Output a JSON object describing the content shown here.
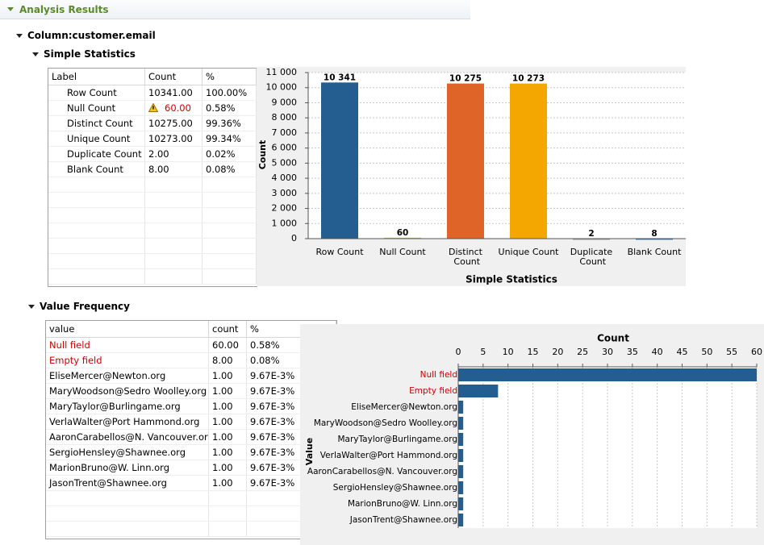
{
  "header": {
    "title": "Analysis Results"
  },
  "column": "Column:customer.email",
  "statistics": {
    "title": "Simple Statistics",
    "table": {
      "columns": [
        "Label",
        "Count",
        "%"
      ],
      "rows": [
        [
          "Row Count",
          "10341.00",
          "100.00%"
        ],
        [
          "Null Count",
          "60.00",
          "0.58%"
        ],
        [
          "Distinct Count",
          "10275.00",
          "99.36%"
        ],
        [
          "Unique Count",
          "10273.00",
          "99.34%"
        ],
        [
          "Duplicate Count",
          "2.00",
          "0.02%"
        ],
        [
          "Blank Count",
          "8.00",
          "0.08%"
        ]
      ]
    }
  },
  "frequency": {
    "title": "Value Frequency",
    "table": {
      "columns": [
        "value",
        "count",
        "%"
      ],
      "rows": [
        [
          "Null field",
          "60.00",
          "0.58%"
        ],
        [
          "Empty field",
          "8.00",
          "0.08%"
        ],
        [
          "EliseMercer@Newton.org",
          "1.00",
          "9.67E-3%"
        ],
        [
          "MaryWoodson@Sedro Woolley.org",
          "1.00",
          "9.67E-3%"
        ],
        [
          "MaryTaylor@Burlingame.org",
          "1.00",
          "9.67E-3%"
        ],
        [
          "VerlaWalter@Port Hammond.org",
          "1.00",
          "9.67E-3%"
        ],
        [
          "AaronCarabellos@N. Vancouver.org",
          "1.00",
          "9.67E-3%"
        ],
        [
          "SergioHensley@Shawnee.org",
          "1.00",
          "9.67E-3%"
        ],
        [
          "MarionBruno@W. Linn.org",
          "1.00",
          "9.67E-3%"
        ],
        [
          "JasonTrent@Shawnee.org",
          "1.00",
          "9.67E-3%"
        ]
      ]
    }
  },
  "chart_data": [
    {
      "type": "bar",
      "x_label": "Simple Statistics",
      "y_label": "Count",
      "categories": [
        "Row Count",
        "Null Count",
        "Distinct Count",
        "Unique Count",
        "Duplicate Count",
        "Blank Count"
      ],
      "values": [
        10341,
        60,
        10275,
        10273,
        2,
        8
      ],
      "value_labels": [
        "10 341",
        "60",
        "10 275",
        "10 273",
        "2",
        "8"
      ],
      "colors": [
        "#245d8f",
        "#b5c935",
        "#df6428",
        "#f4a700",
        "#9a9a9a",
        "#2f6fa6"
      ],
      "ylim": [
        0,
        11000
      ],
      "yticks": [
        0,
        {
          "value": 1000,
          "label": "1 000"
        },
        {
          "value": 2000,
          "label": "2 000"
        },
        {
          "value": 3000,
          "label": "3 000"
        },
        {
          "value": 4000,
          "label": "4 000"
        },
        {
          "value": 5000,
          "label": "5 000"
        },
        {
          "value": 6000,
          "label": "6 000"
        },
        {
          "value": 7000,
          "label": "7 000"
        },
        {
          "value": 8000,
          "label": "8 000"
        },
        {
          "value": 9000,
          "label": "9 000"
        },
        {
          "value": 10000,
          "label": "10 000"
        },
        {
          "value": 11000,
          "label": "11 000"
        }
      ],
      "grid": true
    },
    {
      "type": "hbar",
      "x_label": "Count",
      "y_label": "Value",
      "categories": [
        "Null field",
        "Empty field",
        "EliseMercer@Newton.org",
        "MaryWoodson@Sedro Woolley.org",
        "MaryTaylor@Burlingame.org",
        "VerlaWalter@Port Hammond.org",
        "AaronCarabellos@N. Vancouver.org",
        "SergioHensley@Shawnee.org",
        "MarionBruno@W. Linn.org",
        "JasonTrent@Shawnee.org"
      ],
      "values": [
        60,
        8,
        1,
        1,
        1,
        1,
        1,
        1,
        1,
        1
      ],
      "color": "#245d8f",
      "label_colors": [
        "#d00000",
        "#d00000",
        "#000000",
        "#000000",
        "#000000",
        "#000000",
        "#000000",
        "#000000",
        "#000000",
        "#000000"
      ],
      "xlim": [
        0,
        60
      ],
      "xticks": [
        0,
        5,
        10,
        15,
        20,
        25,
        30,
        35,
        40,
        45,
        50,
        55,
        60
      ],
      "grid": true
    }
  ]
}
